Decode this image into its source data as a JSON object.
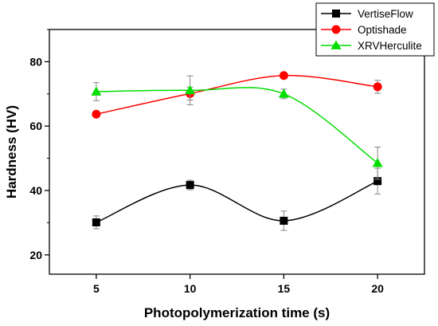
{
  "chart_data": {
    "type": "line",
    "title": "",
    "xlabel": "Photopolymerization time (s)",
    "ylabel": "Hardness (HV)",
    "x": [
      5,
      10,
      15,
      20
    ],
    "xlim": [
      2.5,
      22.5
    ],
    "ylim": [
      14,
      90
    ],
    "xticks": [
      5,
      10,
      15,
      20
    ],
    "yticks": [
      20,
      40,
      60,
      80
    ],
    "grid": false,
    "legend_position": "top-right",
    "series": [
      {
        "name": "VertiseFlow",
        "values": [
          30.1,
          41.7,
          30.6,
          42.9
        ],
        "errors": [
          2.0,
          1.5,
          3.0,
          4.0
        ],
        "color": "#000000",
        "marker": "square"
      },
      {
        "name": "Optishade",
        "values": [
          63.7,
          70.1,
          75.7,
          72.2
        ],
        "errors": [
          0,
          2.0,
          0.5,
          2.0
        ],
        "color": "#ff0000",
        "marker": "circle"
      },
      {
        "name": "XRVHerculite",
        "values": [
          70.7,
          71.1,
          70.0,
          48.5
        ],
        "errors": [
          2.8,
          4.5,
          1.5,
          5.0
        ],
        "color": "#00dd00",
        "marker": "triangle"
      }
    ]
  }
}
